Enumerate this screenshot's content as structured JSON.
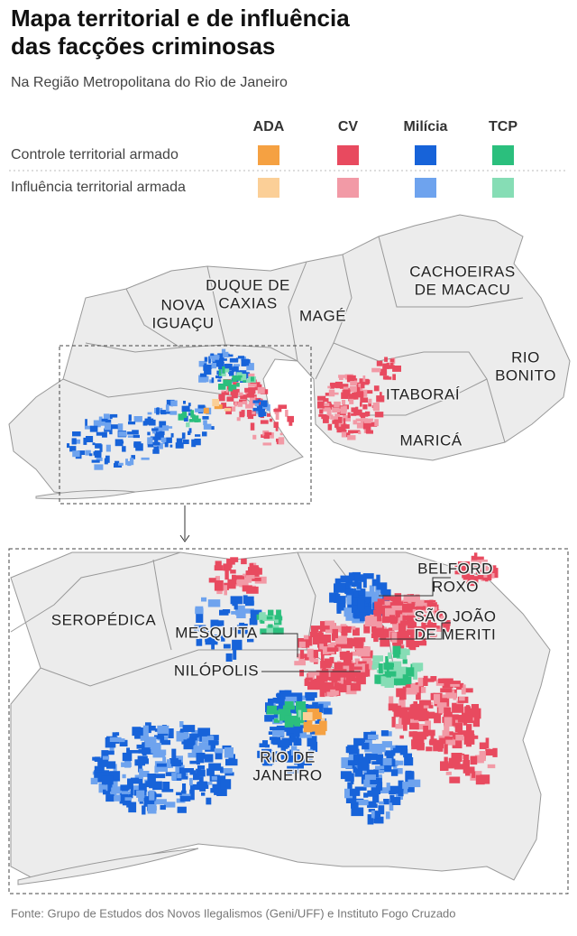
{
  "header": {
    "title_lines": [
      "Mapa territorial e de influência",
      "das facções criminosas"
    ],
    "subtitle": "Na Região Metropolitana do Rio de Janeiro"
  },
  "legend": {
    "groups": [
      "ADA",
      "CV",
      "Milícia",
      "TCP"
    ],
    "rows": [
      {
        "label": "Controle territorial armado",
        "colors": [
          "#f5a142",
          "#e84a5f",
          "#1763d9",
          "#2bbf7d"
        ]
      },
      {
        "label": "Influência territorial armada",
        "colors": [
          "#fbcf97",
          "#f29aa6",
          "#6ea3ee",
          "#86ddb5"
        ]
      }
    ]
  },
  "overview_map": {
    "labels": [
      {
        "lines": [
          "DUQUE DE",
          "CAXIAS"
        ]
      },
      {
        "lines": [
          "NOVA",
          "IGUAÇU"
        ]
      },
      {
        "lines": [
          "MAGÉ"
        ]
      },
      {
        "lines": [
          "CACHOEIRAS",
          "DE MACACU"
        ]
      },
      {
        "lines": [
          "RIO",
          "BONITO"
        ]
      },
      {
        "lines": [
          "ITABORAÍ"
        ]
      },
      {
        "lines": [
          "MARICÁ"
        ]
      }
    ]
  },
  "detail_map": {
    "labels": [
      {
        "lines": [
          "BELFORD",
          "ROXO"
        ]
      },
      {
        "lines": [
          "SÃO JOÃO",
          "DE MERITI"
        ]
      },
      {
        "lines": [
          "SEROPÉDICA"
        ]
      },
      {
        "lines": [
          "MESQUITA"
        ]
      },
      {
        "lines": [
          "NILÓPOLIS"
        ]
      },
      {
        "lines": [
          "RIO DE",
          "JANEIRO"
        ]
      }
    ]
  },
  "source": "Fonte: Grupo de Estudos dos Novos Ilegalismos (Geni/UFF) e Instituto Fogo Cruzado"
}
